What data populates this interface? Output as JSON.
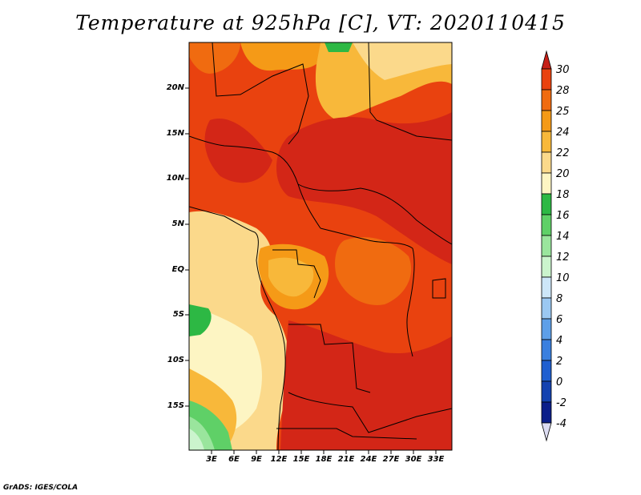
{
  "title": "Temperature at 925hPa [C], VT: 2020110415",
  "credit": "GrADS: IGES/COLA",
  "map": {
    "region": "Central and Southern Africa",
    "lat_labels": [
      "20N",
      "15N",
      "10N",
      "5N",
      "EQ",
      "5S",
      "10S",
      "15S"
    ],
    "lon_labels": [
      "3E",
      "6E",
      "9E",
      "12E",
      "15E",
      "18E",
      "21E",
      "24E",
      "27E",
      "30E",
      "33E"
    ]
  },
  "colorbar": {
    "labels": [
      "30",
      "28",
      "25",
      "24",
      "22",
      "20",
      "18",
      "16",
      "14",
      "12",
      "10",
      "8",
      "6",
      "4",
      "2",
      "0",
      "-2",
      "-4"
    ],
    "colors": [
      "#d32617",
      "#e9420f",
      "#f06b10",
      "#f59a17",
      "#f8b83a",
      "#fbd98b",
      "#fdf5c3",
      "#2db844",
      "#5fd067",
      "#9ae59d",
      "#cbf4cd",
      "#cde6f8",
      "#9bc8f2",
      "#5e9fe8",
      "#3a7fdf",
      "#1f5fd0",
      "#1442b0",
      "#0c1f8a",
      "#0a0a60"
    ],
    "over_color": "#c61f17",
    "under_color": "#dcdcf2"
  }
}
